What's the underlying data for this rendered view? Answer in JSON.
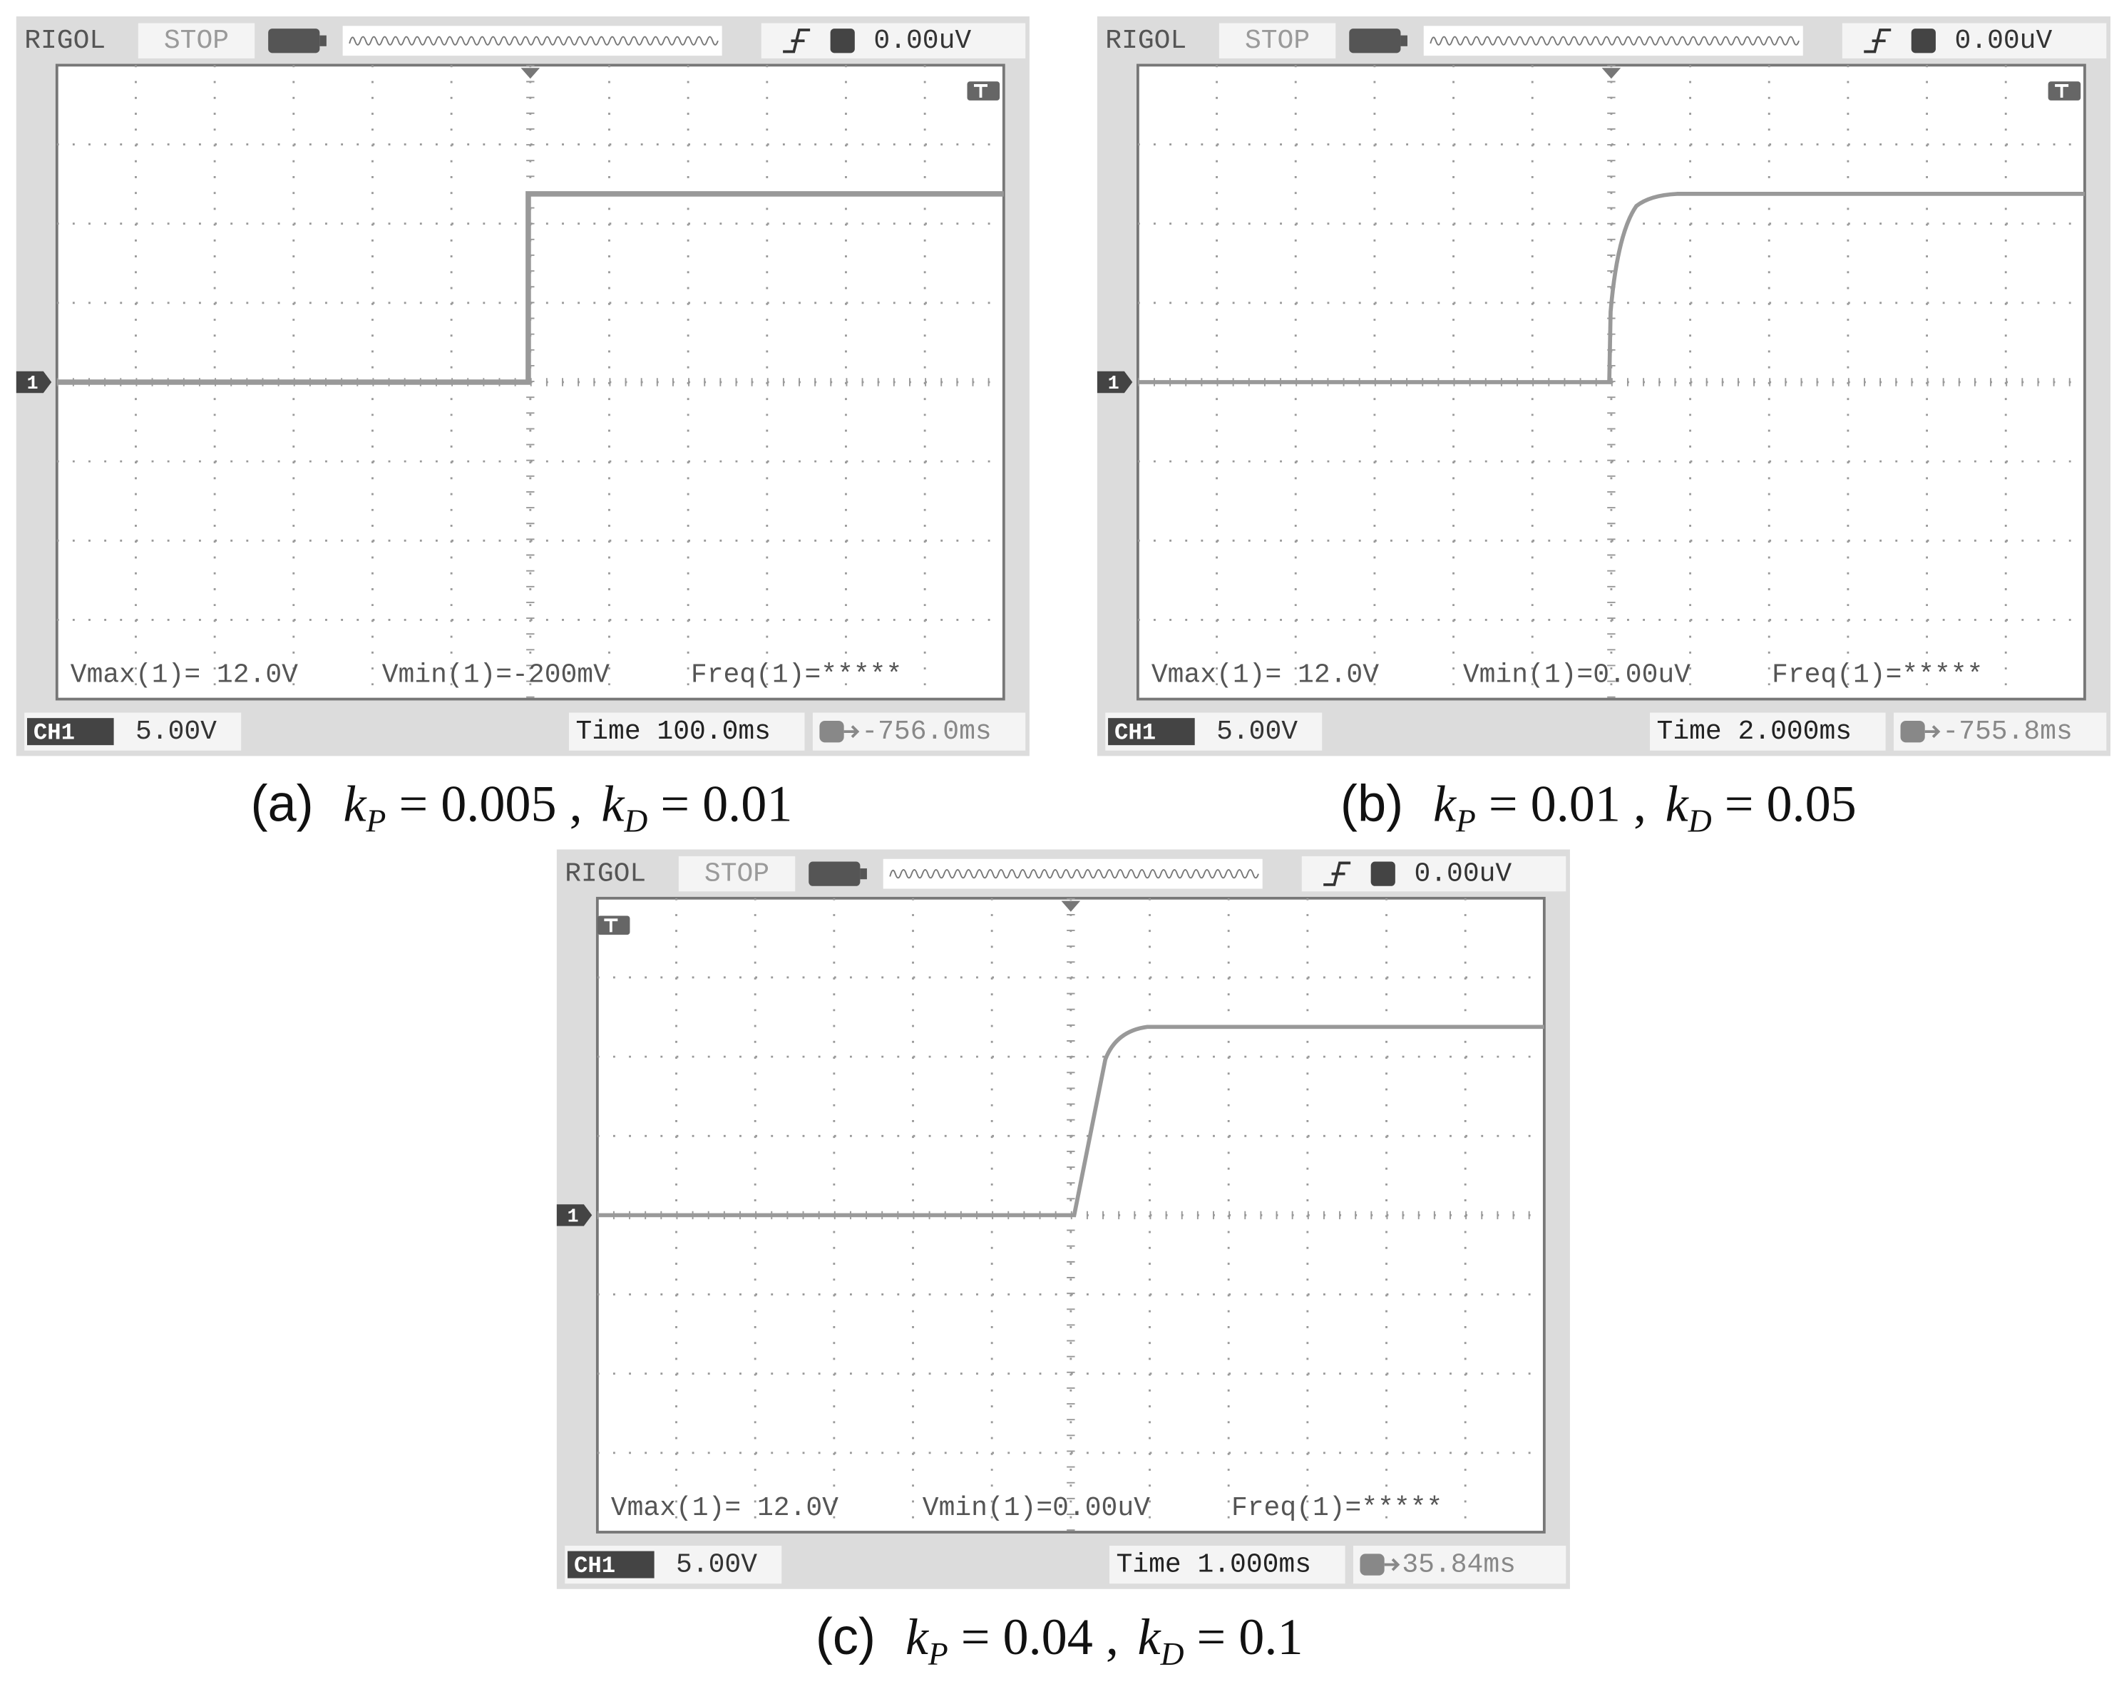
{
  "panels": [
    {
      "brand": "RIGOL",
      "status": "STOP",
      "trigger_level": "0.00uV",
      "channel_marker": "1",
      "vmax": "Vmax(1)= 12.0V",
      "vmin": "Vmin(1)=-200mV",
      "freq": "Freq(1)=*****",
      "channel": "CH1",
      "volts_per_div": "5.00V",
      "timebase": "Time 100.0ms",
      "trigger_offset": "-756.0ms",
      "caption": {
        "tag": "(a)",
        "k1": "k",
        "sub1": "P",
        "rhs1": " = 0.005 ,",
        "k2": "k",
        "sub2": "D",
        "rhs2": " = 0.01"
      }
    },
    {
      "brand": "RIGOL",
      "status": "STOP",
      "trigger_level": "0.00uV",
      "channel_marker": "1",
      "vmax": "Vmax(1)= 12.0V",
      "vmin": "Vmin(1)=0.00uV",
      "freq": "Freq(1)=*****",
      "channel": "CH1",
      "volts_per_div": "5.00V",
      "timebase": "Time 2.000ms",
      "trigger_offset": "-755.8ms",
      "caption": {
        "tag": "(b)",
        "k1": "k",
        "sub1": "P",
        "rhs1": " = 0.01 ,",
        "k2": "k",
        "sub2": "D",
        "rhs2": " = 0.05"
      }
    },
    {
      "brand": "RIGOL",
      "status": "STOP",
      "trigger_level": "0.00uV",
      "channel_marker": "1",
      "vmax": "Vmax(1)= 12.0V",
      "vmin": "Vmin(1)=0.00uV",
      "freq": "Freq(1)=*****",
      "channel": "CH1",
      "volts_per_div": "5.00V",
      "timebase": "Time 1.000ms",
      "trigger_offset": "35.84ms",
      "caption": {
        "tag": "(c)",
        "k1": "k",
        "sub1": "P",
        "rhs1": " = 0.04 ,",
        "k2": "k",
        "sub2": "D",
        "rhs2": " = 0.1"
      }
    }
  ]
}
